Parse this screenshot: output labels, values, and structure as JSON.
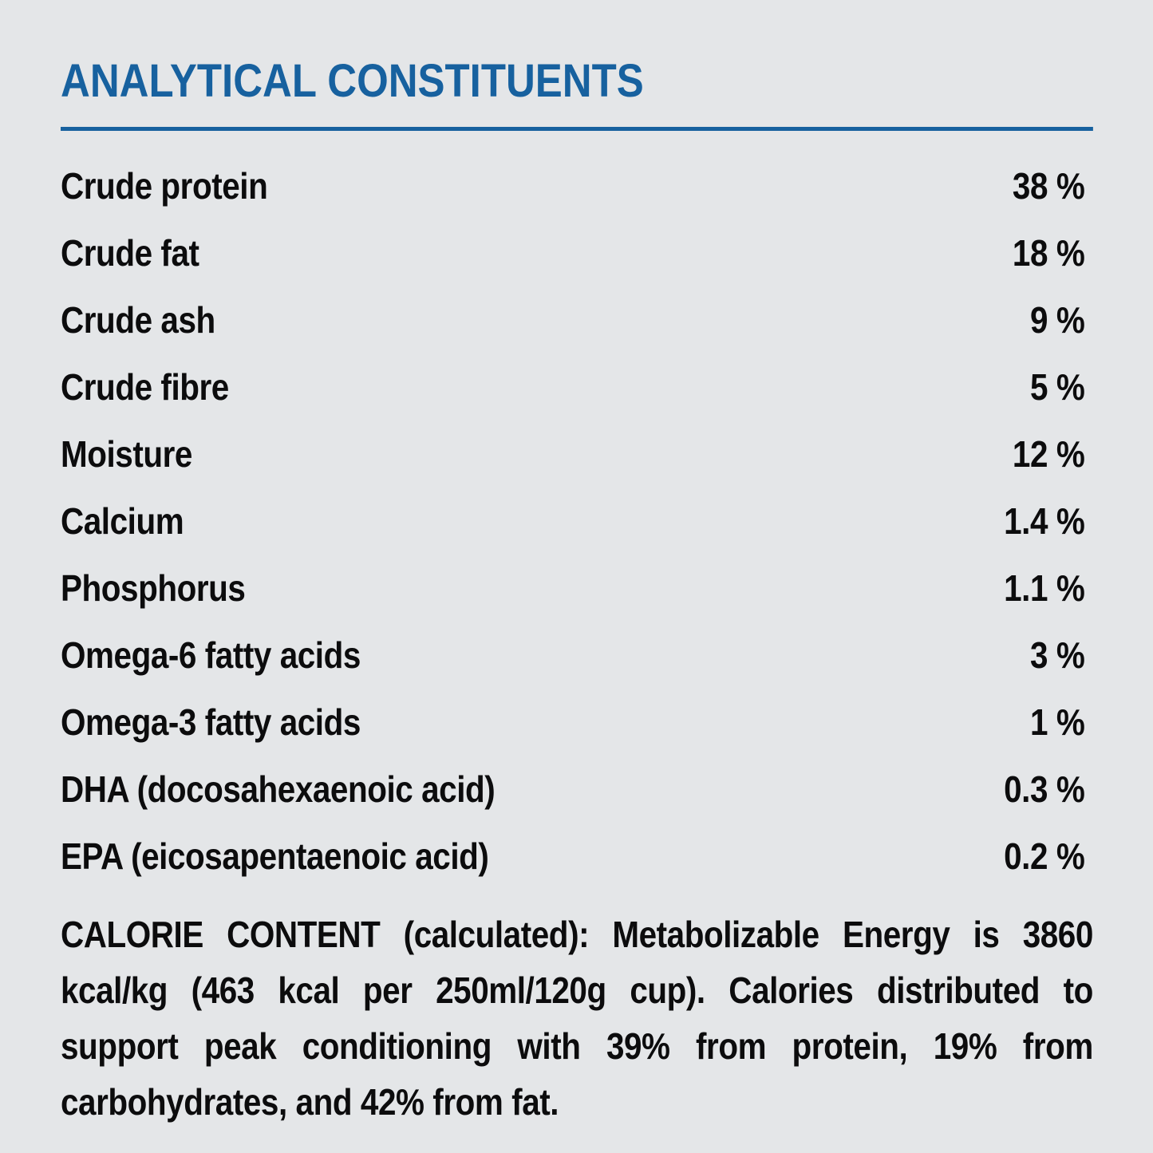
{
  "page": {
    "background": "#e4e6e8",
    "accent_color": "#17619f",
    "text_color": "#0c0c0d"
  },
  "header": {
    "title": "ANALYTICAL CONSTITUENTS"
  },
  "constituents": {
    "rows": [
      {
        "label": "Crude protein",
        "value": "38 %"
      },
      {
        "label": "Crude fat",
        "value": "18 %"
      },
      {
        "label": "Crude ash",
        "value": "9 %"
      },
      {
        "label": "Crude fibre",
        "value": "5 %"
      },
      {
        "label": "Moisture",
        "value": "12 %"
      },
      {
        "label": "Calcium",
        "value": "1.4 %"
      },
      {
        "label": "Phosphorus",
        "value": "1.1 %"
      },
      {
        "label": "Omega-6 fatty acids",
        "value": "3 %"
      },
      {
        "label": "Omega-3 fatty acids",
        "value": "1 %"
      },
      {
        "label": "DHA (docosahexaenoic acid)",
        "value": "0.3 %"
      },
      {
        "label": "EPA (eicosapentaenoic acid)",
        "value": "0.2 %"
      }
    ]
  },
  "calorie_content": {
    "text": "CALORIE CONTENT (calculated): Metabolizable Energy is 3860 kcal/kg (463 kcal per 250ml/120g cup). Calories distributed to support peak conditioning with 39% from protein, 19% from carbohydrates, and 42% from fat."
  }
}
